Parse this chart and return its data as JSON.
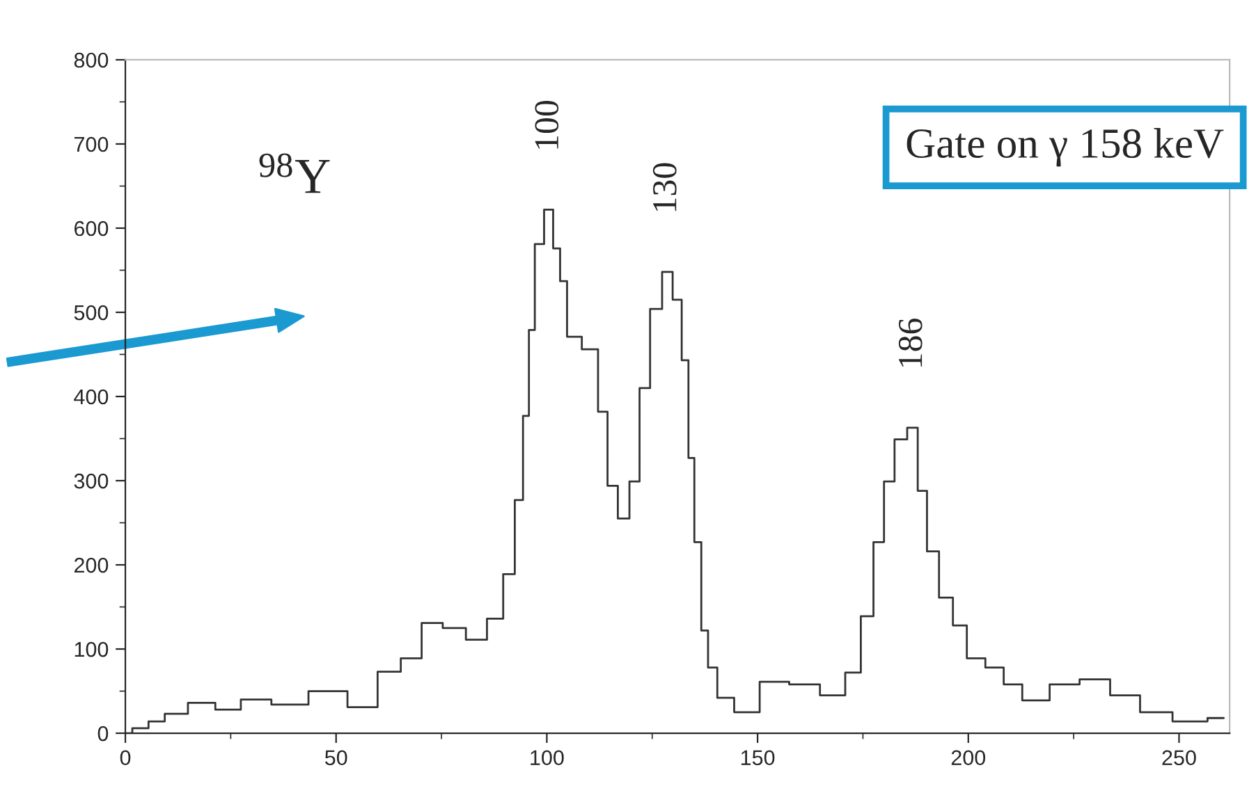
{
  "chart_data": {
    "type": "step",
    "x": [
      0,
      3.3,
      7.7,
      11,
      18.7,
      24,
      30.8,
      38.5,
      48.4,
      57,
      62.7,
      68,
      72.6,
      78,
      83.6,
      88,
      91.3,
      93.5,
      95.2,
      96.3,
      98,
      100.7,
      102.3,
      104,
      105.6,
      111,
      113.3,
      115.5,
      118.2,
      121,
      123,
      126,
      128.7,
      131,
      133,
      134.2,
      135.8,
      137.5,
      139,
      141.9,
      147,
      154,
      161,
      168.6,
      173,
      176,
      179,
      181,
      184,
      187,
      189,
      191.4,
      194.7,
      198,
      201.3,
      206.8,
      210,
      215.6,
      223,
      229.8,
      237.5,
      244,
      252.9,
      260.6
    ],
    "series": [
      {
        "color": "#333333",
        "values": [
          0,
          6,
          14,
          23,
          36,
          28,
          40,
          34,
          50,
          31,
          73,
          89,
          131,
          125,
          111,
          136,
          189,
          277,
          377,
          479,
          581,
          622,
          576,
          537,
          471,
          456,
          382,
          294,
          255,
          299,
          410,
          504,
          548,
          515,
          443,
          327,
          227,
          122,
          78,
          42,
          25,
          61,
          58,
          45,
          72,
          139,
          227,
          299,
          349,
          363,
          288,
          216,
          161,
          128,
          89,
          78,
          58,
          39,
          58,
          64,
          45,
          25,
          14,
          18
        ]
      }
    ],
    "xlim": [
      0,
      262
    ],
    "ylim": [
      0,
      800
    ],
    "xticks": [
      0,
      50,
      100,
      150,
      200,
      250
    ],
    "yticks": [
      0,
      100,
      200,
      300,
      400,
      500,
      600,
      700,
      800
    ],
    "annotations": [
      "$^{98}$Y",
      "Gate on γ 158 keV",
      {
        "text": "100",
        "x": 100.7,
        "y": 622
      },
      {
        "text": "130",
        "x": 128.7,
        "y": 548
      },
      {
        "text": "186",
        "x": 187,
        "y": 363
      }
    ],
    "grid": false,
    "legend": false
  }
}
